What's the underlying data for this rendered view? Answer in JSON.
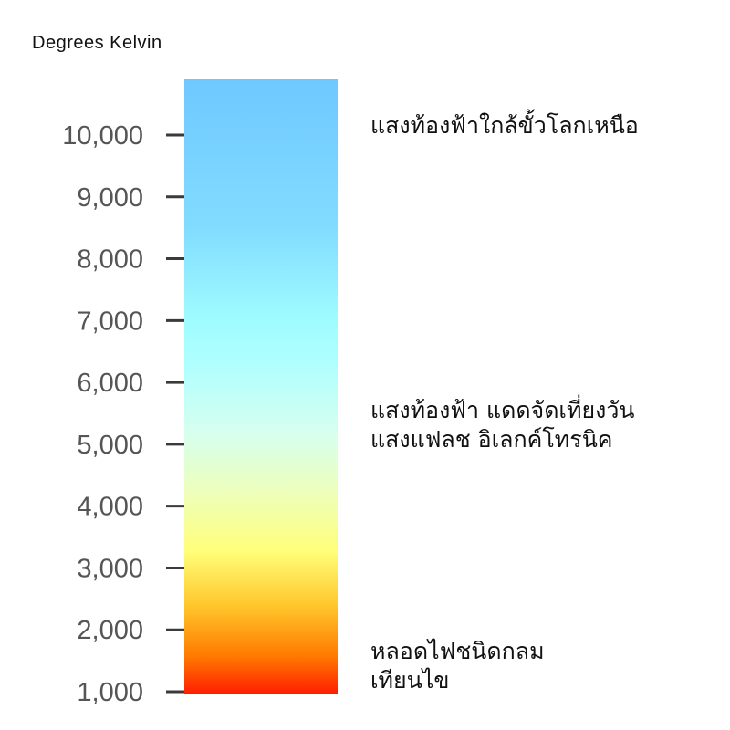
{
  "chart_data": {
    "type": "color-scale",
    "title": "Degrees Kelvin",
    "ylim": [
      1000,
      10900
    ],
    "ticks": [
      1000,
      2000,
      3000,
      4000,
      5000,
      6000,
      7000,
      8000,
      9000,
      10000
    ],
    "tick_labels": [
      "1,000",
      "2,000",
      "3,000",
      "4,000",
      "5,000",
      "6,000",
      "7,000",
      "8,000",
      "9,000",
      "10,000"
    ],
    "gradient": [
      {
        "kelvin": 1000,
        "color": "#ff1e00"
      },
      {
        "kelvin": 1600,
        "color": "#ff7a00"
      },
      {
        "kelvin": 2400,
        "color": "#ffc52a"
      },
      {
        "kelvin": 3300,
        "color": "#ffff7a"
      },
      {
        "kelvin": 4200,
        "color": "#eeffb8"
      },
      {
        "kelvin": 5200,
        "color": "#d6ffee"
      },
      {
        "kelvin": 6300,
        "color": "#b0ffff"
      },
      {
        "kelvin": 7000,
        "color": "#9ffcff"
      },
      {
        "kelvin": 8500,
        "color": "#82dcff"
      },
      {
        "kelvin": 10900,
        "color": "#6fc8ff"
      }
    ],
    "annotations": [
      {
        "kelvin": 10000,
        "lines": [
          "แสงท้องฟ้าใกล้ขั้วโลกเหนือ"
        ]
      },
      {
        "kelvin": 5400,
        "lines": [
          "แสงท้องฟ้า แดดจัดเที่ยงวัน",
          "แสงแฟลช อิเลกค์โทรนิค"
        ]
      },
      {
        "kelvin": 1500,
        "lines": [
          "หลอดไฟชนิดกลม",
          "เทียนไข"
        ]
      }
    ]
  }
}
